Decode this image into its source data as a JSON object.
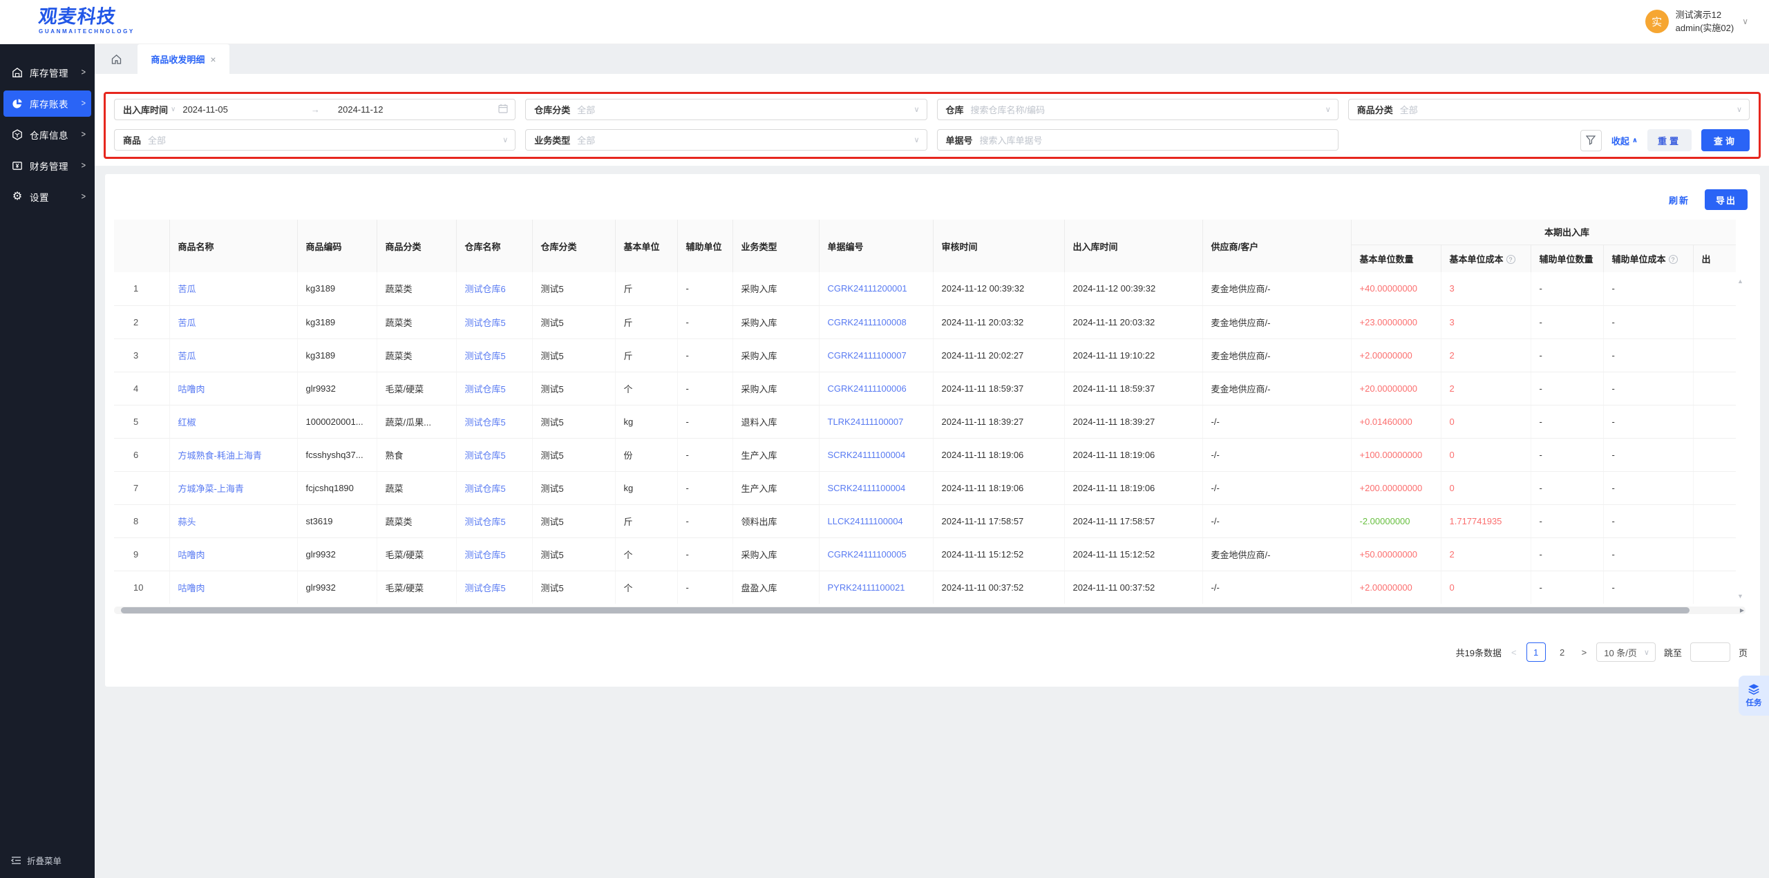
{
  "colors": {
    "accent": "#2a64f6",
    "sidebar_bg": "#181d29",
    "link_blue": "#587af2",
    "inbound_red": "#fb6e6e",
    "outbound_green": "#67bf3f",
    "annotation_red": "#e6271e",
    "avatar_orange": "#f6a632"
  },
  "icons": {
    "chevron_down": "∨",
    "chevron_up": "∧",
    "chevron_right": ">",
    "close": "×",
    "arrow_right": "→",
    "question": "?",
    "pg_prev": "<",
    "pg_next": ">",
    "triangle_up": "▲",
    "triangle_down": "▼",
    "triangle_right": "▶"
  },
  "brand": {
    "title": "观麦科技",
    "subtitle": "GUANMAITECHNOLOGY"
  },
  "user": {
    "avatar_text": "实",
    "name": "测试演示12",
    "role": "admin(实施02)"
  },
  "sidebar": {
    "items": [
      {
        "label": "库存管理",
        "icon": "warehouse-icon",
        "active": false
      },
      {
        "label": "库存账表",
        "icon": "pie-chart-icon",
        "active": true
      },
      {
        "label": "仓库信息",
        "icon": "hexagon-box-icon",
        "active": false
      },
      {
        "label": "财务管理",
        "icon": "finance-icon",
        "active": false
      },
      {
        "label": "设置",
        "icon": "gear-icon",
        "active": false
      }
    ],
    "collapse_label": "折叠菜单"
  },
  "tabbar": {
    "active_tab": "商品收发明细"
  },
  "filters": {
    "time": {
      "label": "出入库时间",
      "from": "2024-11-05",
      "to": "2024-11-12"
    },
    "warehouse_category": {
      "label": "仓库分类",
      "value": "全部"
    },
    "warehouse": {
      "label": "仓库",
      "placeholder": "搜索仓库名称/编码"
    },
    "product_category": {
      "label": "商品分类",
      "value": "全部"
    },
    "product": {
      "label": "商品",
      "value": "全部"
    },
    "business_type": {
      "label": "业务类型",
      "value": "全部"
    },
    "doc_no": {
      "label": "单据号",
      "placeholder": "搜索入库单据号"
    },
    "collapse_label": "收起",
    "reset_label": "重置",
    "search_label": "查询"
  },
  "toolbar": {
    "refresh_label": "刷新",
    "export_label": "导出"
  },
  "table": {
    "columns": [
      "",
      "商品名称",
      "商品编码",
      "商品分类",
      "仓库名称",
      "仓库分类",
      "基本单位",
      "辅助单位",
      "业务类型",
      "单据编号",
      "审核时间",
      "出入库时间",
      "供应商/客户"
    ],
    "group_header": "本期出入库",
    "sub_columns": [
      {
        "label": "基本单位数量",
        "info": false
      },
      {
        "label": "基本单位成本",
        "info": true
      },
      {
        "label": "辅助单位数量",
        "info": false
      },
      {
        "label": "辅助单位成本",
        "info": true
      },
      {
        "label": "出",
        "info": false
      }
    ],
    "rows": [
      [
        "1",
        "苦瓜",
        "kg3189",
        "蔬菜类",
        "测试仓库6",
        "测试5",
        "斤",
        "-",
        "采购入库",
        "CGRK24111200001",
        "2024-11-12 00:39:32",
        "2024-11-12 00:39:32",
        "麦金地供应商/-",
        "+40.00000000",
        "3",
        "-",
        "-"
      ],
      [
        "2",
        "苦瓜",
        "kg3189",
        "蔬菜类",
        "测试仓库5",
        "测试5",
        "斤",
        "-",
        "采购入库",
        "CGRK24111100008",
        "2024-11-11 20:03:32",
        "2024-11-11 20:03:32",
        "麦金地供应商/-",
        "+23.00000000",
        "3",
        "-",
        "-"
      ],
      [
        "3",
        "苦瓜",
        "kg3189",
        "蔬菜类",
        "测试仓库5",
        "测试5",
        "斤",
        "-",
        "采购入库",
        "CGRK24111100007",
        "2024-11-11 20:02:27",
        "2024-11-11 19:10:22",
        "麦金地供应商/-",
        "+2.00000000",
        "2",
        "-",
        "-"
      ],
      [
        "4",
        "咕噜肉",
        "glr9932",
        "毛菜/硬菜",
        "测试仓库5",
        "测试5",
        "个",
        "-",
        "采购入库",
        "CGRK24111100006",
        "2024-11-11 18:59:37",
        "2024-11-11 18:59:37",
        "麦金地供应商/-",
        "+20.00000000",
        "2",
        "-",
        "-"
      ],
      [
        "5",
        "红椒",
        "1000020001...",
        "蔬菜/瓜果...",
        "测试仓库5",
        "测试5",
        "kg",
        "-",
        "退料入库",
        "TLRK24111100007",
        "2024-11-11 18:39:27",
        "2024-11-11 18:39:27",
        "-/-",
        "+0.01460000",
        "0",
        "-",
        "-"
      ],
      [
        "6",
        "方城熟食-耗油上海青",
        "fcsshyshq37...",
        "熟食",
        "测试仓库5",
        "测试5",
        "份",
        "-",
        "生产入库",
        "SCRK24111100004",
        "2024-11-11 18:19:06",
        "2024-11-11 18:19:06",
        "-/-",
        "+100.00000000",
        "0",
        "-",
        "-"
      ],
      [
        "7",
        "方城净菜-上海青",
        "fcjcshq1890",
        "蔬菜",
        "测试仓库5",
        "测试5",
        "kg",
        "-",
        "生产入库",
        "SCRK24111100004",
        "2024-11-11 18:19:06",
        "2024-11-11 18:19:06",
        "-/-",
        "+200.00000000",
        "0",
        "-",
        "-"
      ],
      [
        "8",
        "蒜头",
        "st3619",
        "蔬菜类",
        "测试仓库5",
        "测试5",
        "斤",
        "-",
        "领料出库",
        "LLCK24111100004",
        "2024-11-11 17:58:57",
        "2024-11-11 17:58:57",
        "-/-",
        "-2.00000000",
        "1.717741935",
        "-",
        "-"
      ],
      [
        "9",
        "咕噜肉",
        "glr9932",
        "毛菜/硬菜",
        "测试仓库5",
        "测试5",
        "个",
        "-",
        "采购入库",
        "CGRK24111100005",
        "2024-11-11 15:12:52",
        "2024-11-11 15:12:52",
        "麦金地供应商/-",
        "+50.00000000",
        "2",
        "-",
        "-"
      ],
      [
        "10",
        "咕噜肉",
        "glr9932",
        "毛菜/硬菜",
        "测试仓库5",
        "测试5",
        "个",
        "-",
        "盘盈入库",
        "PYRK24111100021",
        "2024-11-11 00:37:52",
        "2024-11-11 00:37:52",
        "-/-",
        "+2.00000000",
        "0",
        "-",
        "-"
      ]
    ]
  },
  "pagination": {
    "total_text": "共19条数据",
    "pages": [
      "1",
      "2"
    ],
    "active_page": "1",
    "page_size": "10 条/页",
    "jump_label": "跳至",
    "page_unit": "页"
  },
  "floating_task": {
    "label": "任务"
  }
}
